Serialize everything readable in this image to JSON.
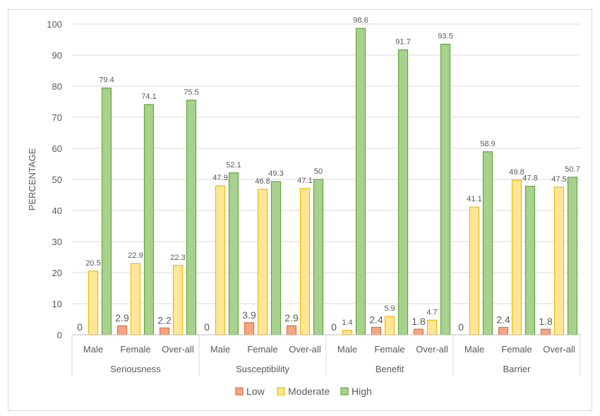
{
  "chart_data": {
    "type": "bar",
    "title": "",
    "ylabel": "PERCENTAGE",
    "ylim": [
      0,
      100
    ],
    "yticks": [
      0,
      10,
      20,
      30,
      40,
      50,
      60,
      70,
      80,
      90,
      100
    ],
    "groups": [
      "Seriousness",
      "Susceptibility",
      "Benefit",
      "Barrier"
    ],
    "subcategories": [
      "Male",
      "Female",
      "Over-all"
    ],
    "series": [
      {
        "name": "Low",
        "color": "#f4a582",
        "stroke": "#e8703a",
        "values": [
          0,
          2.9,
          2.2,
          0,
          3.9,
          2.9,
          0,
          2.4,
          1.8,
          0,
          2.4,
          1.8
        ]
      },
      {
        "name": "Moderate",
        "color": "#ffe699",
        "stroke": "#f5b800",
        "values": [
          20.5,
          22.9,
          22.3,
          47.9,
          46.8,
          47.1,
          1.4,
          5.9,
          4.7,
          41.1,
          49.8,
          47.5
        ]
      },
      {
        "name": "High",
        "color": "#a9d18e",
        "stroke": "#5ea83a",
        "values": [
          79.4,
          74.1,
          75.5,
          52.1,
          49.3,
          50,
          98.6,
          91.7,
          93.5,
          58.9,
          47.8,
          50.7
        ]
      }
    ],
    "legend_position": "bottom",
    "grid": true
  }
}
